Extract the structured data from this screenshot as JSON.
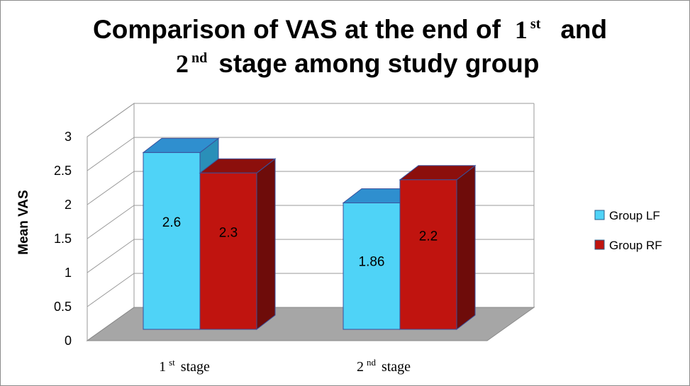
{
  "chart_data": {
    "type": "bar",
    "title_line1": "Comparison of VAS at the end of",
    "title_num1": "1",
    "title_sup1": "st",
    "title_and": "and",
    "title_num2": "2",
    "title_sup2": "nd",
    "title_line2": "stage among study group",
    "ylabel": "Mean VAS",
    "ylim": [
      0,
      3
    ],
    "yticks": [
      "0",
      "0.5",
      "1",
      "1.5",
      "2",
      "2.5",
      "3"
    ],
    "categories": [
      {
        "num": "1",
        "sup": "st",
        "text": "stage"
      },
      {
        "num": "2",
        "sup": "nd",
        "text": "stage"
      }
    ],
    "series": [
      {
        "name": "Group LF",
        "values": [
          2.6,
          1.86
        ],
        "labels": [
          "2.6",
          "1.86"
        ],
        "color": "#4fd3f7"
      },
      {
        "name": "Group RF",
        "values": [
          2.3,
          2.2
        ],
        "labels": [
          "2.3",
          "2.2"
        ],
        "color": "#c0140f"
      }
    ],
    "floor_color": "#a6a6a6",
    "legend_position": "right"
  }
}
